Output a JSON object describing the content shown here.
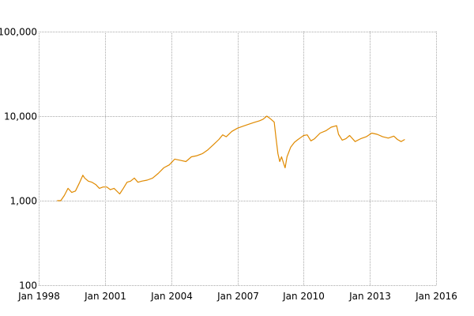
{
  "chart_data": {
    "type": "line",
    "title": "",
    "xlabel": "",
    "ylabel": "",
    "y_scale": "log",
    "grid": true,
    "ylim": [
      100,
      100000
    ],
    "xlim": [
      "1998-01-01",
      "2016-01-01"
    ],
    "y_ticks": [
      {
        "value": 100,
        "label": "100"
      },
      {
        "value": 1000,
        "label": "1,000"
      },
      {
        "value": 10000,
        "label": "10,000"
      },
      {
        "value": 100000,
        "label": "100,000"
      }
    ],
    "x_ticks": [
      {
        "date": "1998-01-01",
        "label": "Jan 1998"
      },
      {
        "date": "2001-01-01",
        "label": "Jan 2001"
      },
      {
        "date": "2004-01-01",
        "label": "Jan 2004"
      },
      {
        "date": "2007-01-01",
        "label": "Jan 2007"
      },
      {
        "date": "2010-01-01",
        "label": "Jan 2010"
      },
      {
        "date": "2013-01-01",
        "label": "Jan 2013"
      },
      {
        "date": "2016-01-01",
        "label": "Jan 2016"
      }
    ],
    "series": [
      {
        "color": "#e08a00",
        "points": [
          [
            "1998-11-01",
            1000
          ],
          [
            "1999-01-01",
            1000
          ],
          [
            "1999-03-01",
            1150
          ],
          [
            "1999-05-01",
            1400
          ],
          [
            "1999-07-01",
            1250
          ],
          [
            "1999-09-01",
            1300
          ],
          [
            "1999-11-01",
            1600
          ],
          [
            "2000-01-01",
            2000
          ],
          [
            "2000-02-01",
            1850
          ],
          [
            "2000-04-01",
            1700
          ],
          [
            "2000-06-01",
            1650
          ],
          [
            "2000-08-01",
            1550
          ],
          [
            "2000-10-01",
            1400
          ],
          [
            "2000-12-01",
            1450
          ],
          [
            "2001-02-01",
            1450
          ],
          [
            "2001-04-01",
            1350
          ],
          [
            "2001-06-01",
            1400
          ],
          [
            "2001-09-01",
            1200
          ],
          [
            "2001-11-01",
            1400
          ],
          [
            "2002-01-01",
            1650
          ],
          [
            "2002-03-01",
            1700
          ],
          [
            "2002-05-01",
            1850
          ],
          [
            "2002-07-01",
            1650
          ],
          [
            "2002-09-01",
            1700
          ],
          [
            "2002-12-01",
            1750
          ],
          [
            "2003-03-01",
            1850
          ],
          [
            "2003-06-01",
            2100
          ],
          [
            "2003-09-01",
            2450
          ],
          [
            "2003-12-01",
            2650
          ],
          [
            "2004-03-01",
            3100
          ],
          [
            "2004-06-01",
            3000
          ],
          [
            "2004-09-01",
            2900
          ],
          [
            "2004-12-01",
            3300
          ],
          [
            "2005-03-01",
            3400
          ],
          [
            "2005-06-01",
            3600
          ],
          [
            "2005-09-01",
            4000
          ],
          [
            "2005-12-01",
            4600
          ],
          [
            "2006-03-01",
            5300
          ],
          [
            "2006-05-01",
            6000
          ],
          [
            "2006-07-01",
            5700
          ],
          [
            "2006-10-01",
            6600
          ],
          [
            "2007-01-01",
            7200
          ],
          [
            "2007-04-01",
            7600
          ],
          [
            "2007-07-01",
            8000
          ],
          [
            "2007-10-01",
            8400
          ],
          [
            "2008-01-01",
            8800
          ],
          [
            "2008-03-01",
            9200
          ],
          [
            "2008-05-01",
            10000
          ],
          [
            "2008-07-01",
            9300
          ],
          [
            "2008-09-01",
            8500
          ],
          [
            "2008-10-01",
            5500
          ],
          [
            "2008-11-01",
            3600
          ],
          [
            "2008-12-01",
            2900
          ],
          [
            "2009-01-01",
            3300
          ],
          [
            "2009-02-01",
            2800
          ],
          [
            "2009-03-01",
            2450
          ],
          [
            "2009-04-01",
            3300
          ],
          [
            "2009-06-01",
            4300
          ],
          [
            "2009-08-01",
            4900
          ],
          [
            "2009-10-01",
            5300
          ],
          [
            "2010-01-01",
            5900
          ],
          [
            "2010-03-01",
            6000
          ],
          [
            "2010-05-01",
            5100
          ],
          [
            "2010-07-01",
            5400
          ],
          [
            "2010-10-01",
            6300
          ],
          [
            "2011-01-01",
            6700
          ],
          [
            "2011-04-01",
            7400
          ],
          [
            "2011-07-01",
            7700
          ],
          [
            "2011-08-01",
            6100
          ],
          [
            "2011-10-01",
            5200
          ],
          [
            "2011-12-01",
            5400
          ],
          [
            "2012-02-01",
            5900
          ],
          [
            "2012-05-01",
            5000
          ],
          [
            "2012-08-01",
            5400
          ],
          [
            "2012-11-01",
            5700
          ],
          [
            "2013-02-01",
            6300
          ],
          [
            "2013-05-01",
            6100
          ],
          [
            "2013-08-01",
            5700
          ],
          [
            "2013-11-01",
            5500
          ],
          [
            "2014-02-01",
            5800
          ],
          [
            "2014-04-01",
            5300
          ],
          [
            "2014-06-01",
            5000
          ],
          [
            "2014-08-01",
            5300
          ]
        ]
      }
    ]
  }
}
